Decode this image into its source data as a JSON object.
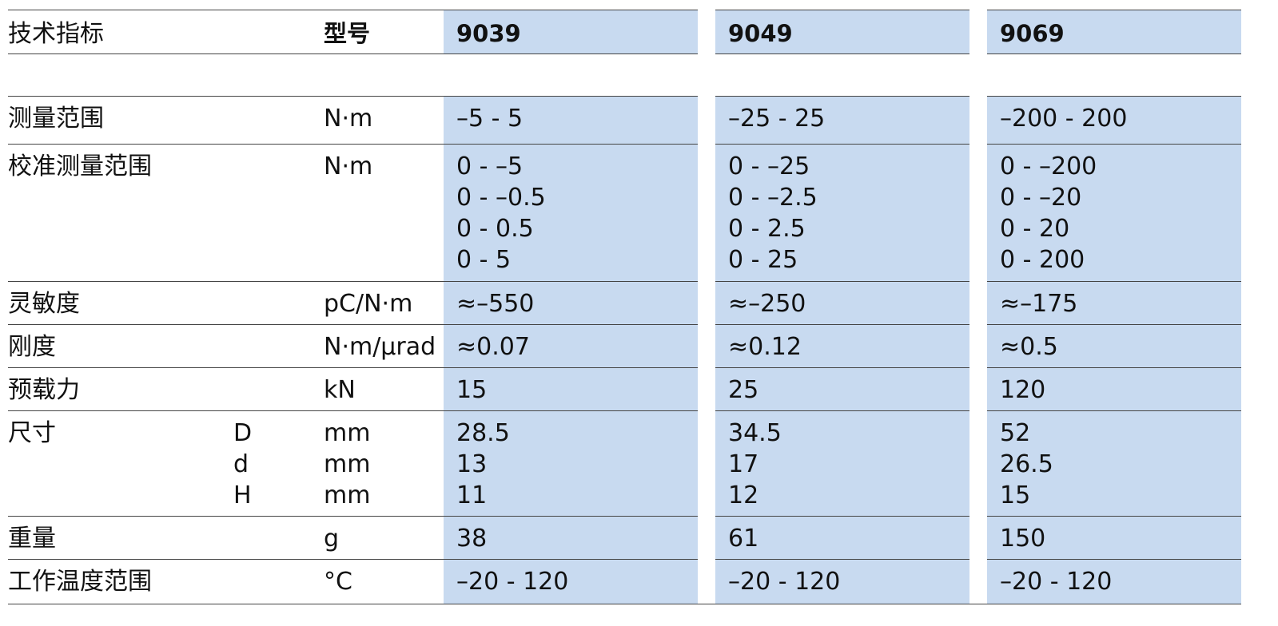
{
  "header": {
    "spec_label": "技术指标",
    "model_label": "型号",
    "models": [
      "9039",
      "9049",
      "9069"
    ]
  },
  "rows": [
    {
      "label": "测量范围",
      "sub": [
        ""
      ],
      "unit": [
        "N·m"
      ],
      "values": [
        [
          "–5 - 5"
        ],
        [
          "–25 - 25"
        ],
        [
          "–200 - 200"
        ]
      ]
    },
    {
      "label": "校准测量范围",
      "sub": [
        ""
      ],
      "unit": [
        "N·m"
      ],
      "values": [
        [
          "0 - –5",
          "0 - –0.5",
          "0 - 0.5",
          "0 - 5"
        ],
        [
          "0 - –25",
          "0 - –2.5",
          "0 - 2.5",
          "0 - 25"
        ],
        [
          "0 - –200",
          "0 - –20",
          "0 - 20",
          "0 - 200"
        ]
      ]
    },
    {
      "label": "灵敏度",
      "sub": [
        ""
      ],
      "unit": [
        "pC/N·m"
      ],
      "values": [
        [
          "≈–550"
        ],
        [
          "≈–250"
        ],
        [
          "≈–175"
        ]
      ]
    },
    {
      "label": "刚度",
      "sub": [
        ""
      ],
      "unit": [
        "N·m/μrad"
      ],
      "values": [
        [
          "≈0.07"
        ],
        [
          "≈0.12"
        ],
        [
          "≈0.5"
        ]
      ]
    },
    {
      "label": "预载力",
      "sub": [
        ""
      ],
      "unit": [
        "kN"
      ],
      "values": [
        [
          "15"
        ],
        [
          "25"
        ],
        [
          "120"
        ]
      ]
    },
    {
      "label": "尺寸",
      "sub": [
        "D",
        "d",
        "H"
      ],
      "unit": [
        "mm",
        "mm",
        "mm"
      ],
      "values": [
        [
          "28.5",
          "13",
          "11"
        ],
        [
          "34.5",
          "17",
          "12"
        ],
        [
          "52",
          "26.5",
          "15"
        ]
      ]
    },
    {
      "label": "重量",
      "sub": [
        ""
      ],
      "unit": [
        "g"
      ],
      "values": [
        [
          "38"
        ],
        [
          "61"
        ],
        [
          "150"
        ]
      ]
    },
    {
      "label": "工作温度范围",
      "sub": [
        ""
      ],
      "unit": [
        "°C"
      ],
      "values": [
        [
          "–20 - 120"
        ],
        [
          "–20 - 120"
        ],
        [
          "–20 - 120"
        ]
      ]
    }
  ],
  "colors": {
    "value_bg": "#c8daf0",
    "rule": "#444444"
  }
}
